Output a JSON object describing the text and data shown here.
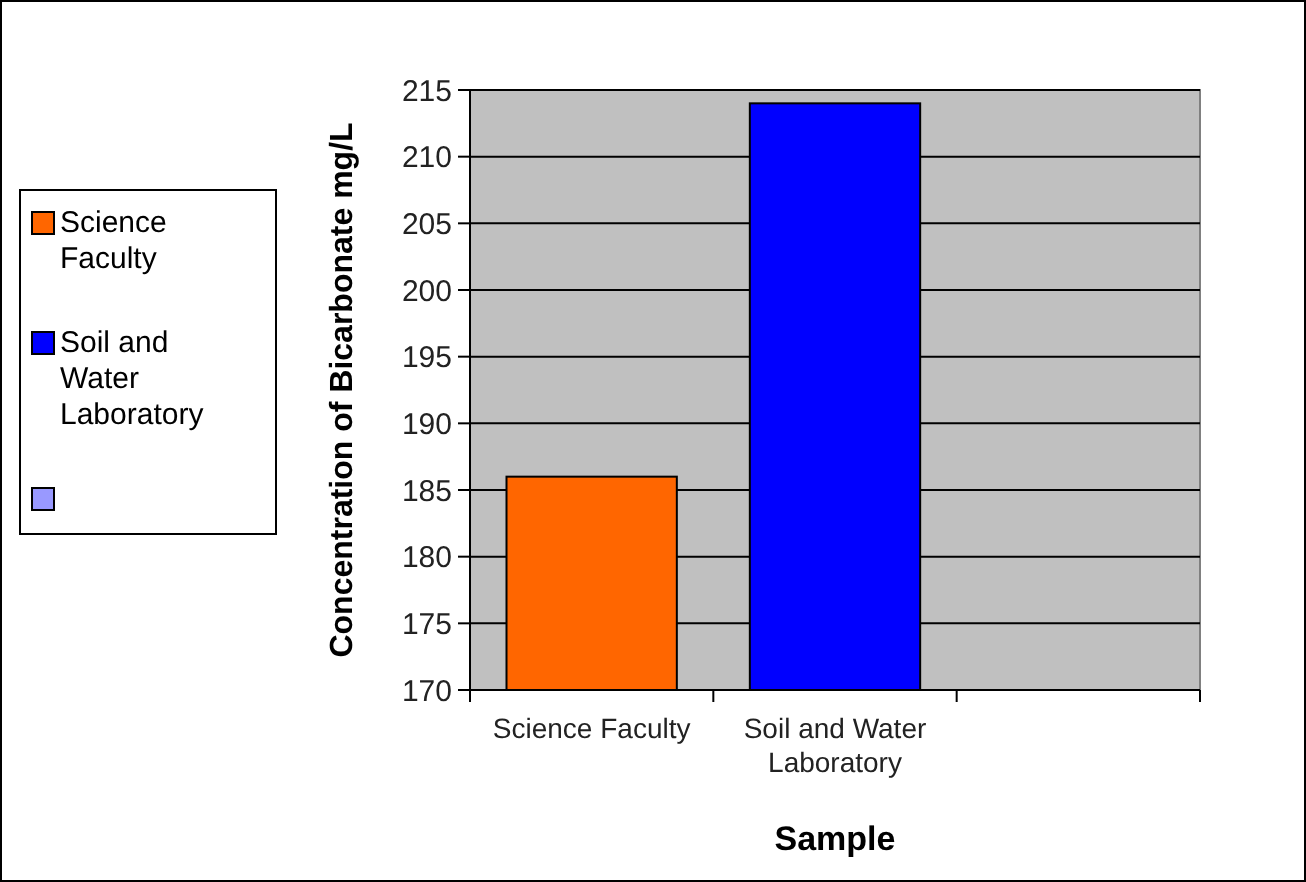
{
  "chart_data": {
    "type": "bar",
    "xlabel": "Sample",
    "ylabel": "Concentration of Bicarbonate  mg/L",
    "categories": [
      "Science Faculty",
      "Soil and Water Laboratory",
      null
    ],
    "series": [
      {
        "name": "Science Faculty",
        "color": "#ff6600",
        "values": [
          186,
          null,
          null
        ]
      },
      {
        "name": "Soil and Water Laboratory",
        "color": "#0000ff",
        "values": [
          null,
          214,
          null
        ]
      },
      {
        "color": "#9999ff",
        "values": [
          null,
          null,
          null
        ]
      }
    ],
    "ylim": [
      170,
      215
    ],
    "yticks": [
      170,
      175,
      180,
      185,
      190,
      195,
      200,
      205,
      210,
      215
    ],
    "grid": "y",
    "legend": "left"
  }
}
